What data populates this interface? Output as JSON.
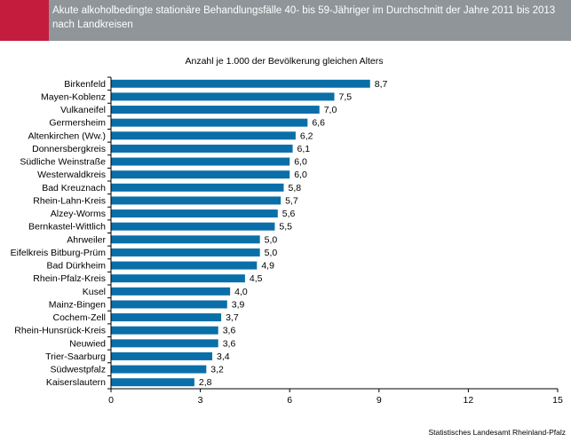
{
  "header": {
    "title": "Akute alkoholbedingte stationäre Behandlungsfälle 40- bis 59-Jähriger im Durchschnitt der Jahre 2011 bis 2013 nach Landkreisen",
    "accent_color": "#c41c3c",
    "background_color": "#8f9599"
  },
  "chart_data": {
    "type": "bar",
    "orientation": "horizontal",
    "title": "Anzahl je 1.000 der Bevölkerung gleichen Alters",
    "categories": [
      "Birkenfeld",
      "Mayen-Koblenz",
      "Vulkaneifel",
      "Germersheim",
      "Altenkirchen (Ww.)",
      "Donnersbergkreis",
      "Südliche Weinstraße",
      "Westerwaldkreis",
      "Bad Kreuznach",
      "Rhein-Lahn-Kreis",
      "Alzey-Worms",
      "Bernkastel-Wittlich",
      "Ahrweiler",
      "Eifelkreis Bitburg-Prüm",
      "Bad Dürkheim",
      "Rhein-Pfalz-Kreis",
      "Kusel",
      "Mainz-Bingen",
      "Cochem-Zell",
      "Rhein-Hunsrück-Kreis",
      "Neuwied",
      "Trier-Saarburg",
      "Südwestpfalz",
      "Kaiserslautern"
    ],
    "values": [
      8.7,
      7.5,
      7.0,
      6.6,
      6.2,
      6.1,
      6.0,
      6.0,
      5.8,
      5.7,
      5.6,
      5.5,
      5.0,
      5.0,
      4.9,
      4.5,
      4.0,
      3.9,
      3.7,
      3.6,
      3.6,
      3.4,
      3.2,
      2.8
    ],
    "value_labels": [
      "8,7",
      "7,5",
      "7,0",
      "6,6",
      "6,2",
      "6,1",
      "6,0",
      "6,0",
      "5,8",
      "5,7",
      "5,6",
      "5,5",
      "5,0",
      "5,0",
      "4,9",
      "4,5",
      "4,0",
      "3,9",
      "3,7",
      "3,6",
      "3,6",
      "3,4",
      "3,2",
      "2,8"
    ],
    "xlim": [
      0,
      15
    ],
    "xticks": [
      0,
      3,
      6,
      9,
      12,
      15
    ],
    "grid": false,
    "bar_color": "#0a6fa8"
  },
  "footer": {
    "source": "Statistisches Landesamt Rheinland-Pfalz"
  }
}
